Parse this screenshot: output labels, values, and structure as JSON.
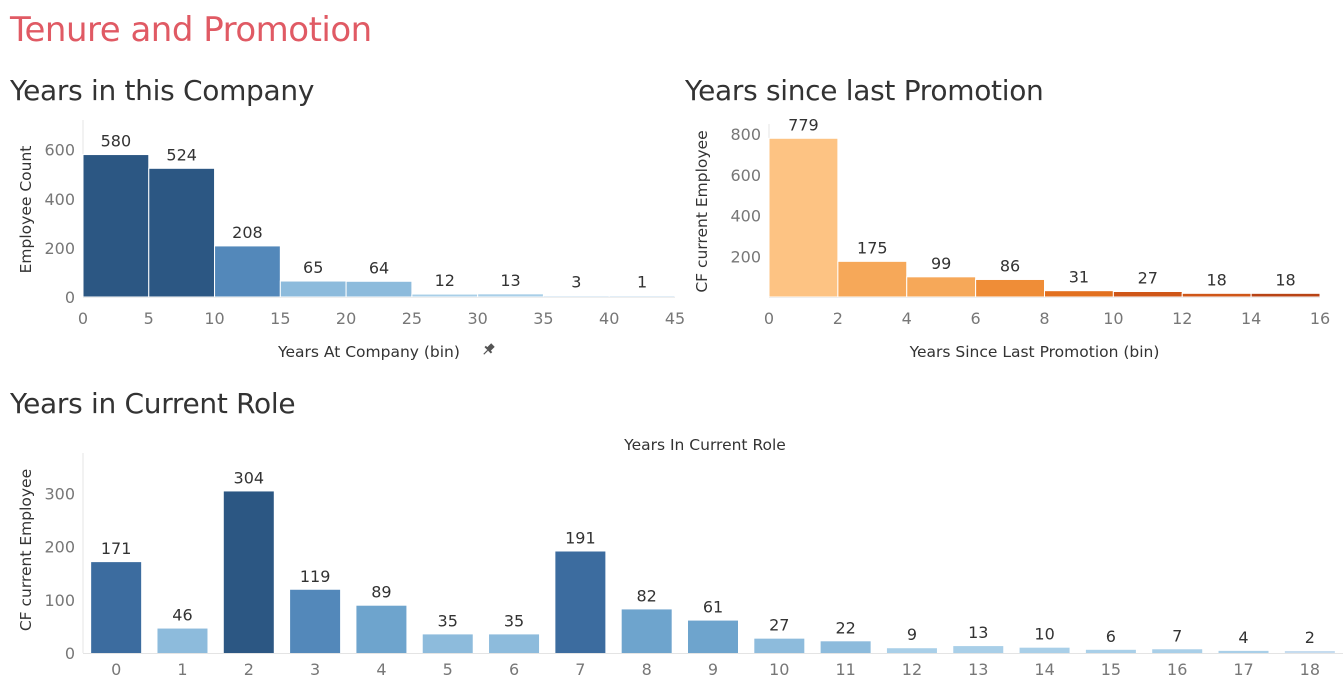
{
  "page_title": "Tenure and Promotion",
  "panels": {
    "company": {
      "title": "Years in this Company"
    },
    "promotion": {
      "title": "Years since last Promotion"
    },
    "role": {
      "title": "Years in Current Role"
    }
  },
  "colors": {
    "title": "#e05a64",
    "blue_scale": [
      "#c6dcef",
      "#a9cfe8",
      "#8dbbdc",
      "#6ea4cd",
      "#5388ba",
      "#3c6c9f",
      "#2c5783"
    ],
    "orange_scale": [
      "#fdc383",
      "#f6a859",
      "#ef8d37",
      "#e2701f",
      "#cf5618",
      "#b84315"
    ]
  },
  "chart_data": [
    {
      "type": "bar",
      "bar_style": "histogram",
      "categories": [
        "0",
        "5",
        "10",
        "15",
        "20",
        "25",
        "30",
        "35",
        "40"
      ],
      "bin_edges": [
        0,
        5,
        10,
        15,
        20,
        25,
        30,
        35,
        40,
        45
      ],
      "values": [
        580,
        524,
        208,
        65,
        64,
        12,
        13,
        3,
        1
      ],
      "data_labels": [
        "580",
        "524",
        "208",
        "65",
        "64",
        "12",
        "13",
        "3",
        "1"
      ],
      "title": "",
      "xlabel": "Years At Company (bin)",
      "ylabel": "Employee Count",
      "xlim": [
        0,
        45
      ],
      "ylim": [
        0,
        680
      ],
      "x_ticks": [
        "0",
        "5",
        "10",
        "15",
        "20",
        "25",
        "30",
        "35",
        "40",
        "45"
      ],
      "y_ticks": [
        "0",
        "200",
        "400",
        "600"
      ],
      "grid": false,
      "color_scale": "blue"
    },
    {
      "type": "bar",
      "bar_style": "histogram",
      "categories": [
        "0",
        "2",
        "4",
        "6",
        "8",
        "10",
        "12",
        "14"
      ],
      "bin_edges": [
        0,
        2,
        4,
        6,
        8,
        10,
        12,
        14,
        16
      ],
      "values": [
        779,
        175,
        99,
        86,
        31,
        27,
        18,
        18
      ],
      "data_labels": [
        "779",
        "175",
        "99",
        "86",
        "31",
        "27",
        "18",
        "18"
      ],
      "title": "",
      "xlabel": "Years Since Last Promotion (bin)",
      "ylabel": "CF current Employee",
      "xlim": [
        0,
        16
      ],
      "ylim": [
        0,
        800
      ],
      "x_ticks": [
        "0",
        "2",
        "4",
        "6",
        "8",
        "10",
        "12",
        "14",
        "16"
      ],
      "y_ticks": [
        "200",
        "400",
        "600",
        "800"
      ],
      "grid": false,
      "color_scale": "orange"
    },
    {
      "type": "bar",
      "bar_style": "separated",
      "categories": [
        "0",
        "1",
        "2",
        "3",
        "4",
        "5",
        "6",
        "7",
        "8",
        "9",
        "10",
        "11",
        "12",
        "13",
        "14",
        "15",
        "16",
        "17",
        "18"
      ],
      "values": [
        171,
        46,
        304,
        119,
        89,
        35,
        35,
        191,
        82,
        61,
        27,
        22,
        9,
        13,
        10,
        6,
        7,
        4,
        2
      ],
      "data_labels": [
        "171",
        "46",
        "304",
        "119",
        "89",
        "35",
        "35",
        "191",
        "82",
        "61",
        "27",
        "22",
        "9",
        "13",
        "10",
        "6",
        "7",
        "4",
        "2"
      ],
      "title": "Years In Current Role",
      "xlabel": "",
      "ylabel": "CF current Employee",
      "ylim": [
        0,
        350
      ],
      "y_ticks": [
        "0",
        "100",
        "200",
        "300"
      ],
      "grid": false,
      "color_scale": "blue"
    }
  ]
}
